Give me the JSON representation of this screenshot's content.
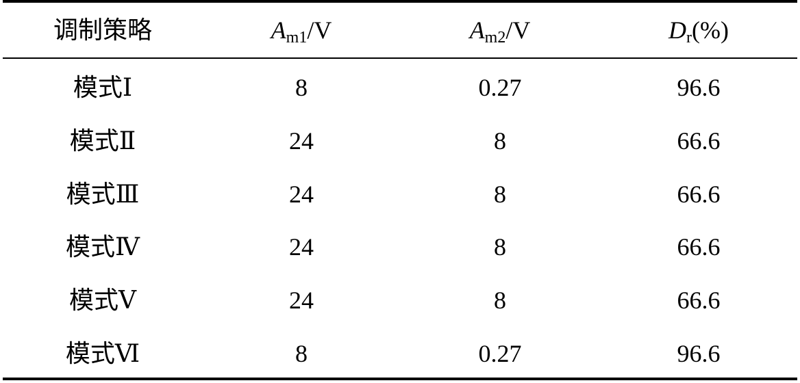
{
  "table": {
    "header": [
      {
        "text": "调制策略"
      },
      {
        "main": "A",
        "sub": "m1",
        "rest": "/V"
      },
      {
        "main": "A",
        "sub": "m2",
        "rest": "/V"
      },
      {
        "main": "D",
        "sub": "r",
        "rest": "(%)"
      }
    ],
    "rows": [
      [
        "模式Ⅰ",
        8,
        0.27,
        96.6
      ],
      [
        "模式Ⅱ",
        24,
        8,
        66.6
      ],
      [
        "模式Ⅲ",
        24,
        8,
        66.6
      ],
      [
        "模式Ⅳ",
        24,
        8,
        66.6
      ],
      [
        "模式Ⅴ",
        24,
        8,
        66.6
      ],
      [
        "模式Ⅵ",
        8,
        0.27,
        96.6
      ]
    ]
  }
}
